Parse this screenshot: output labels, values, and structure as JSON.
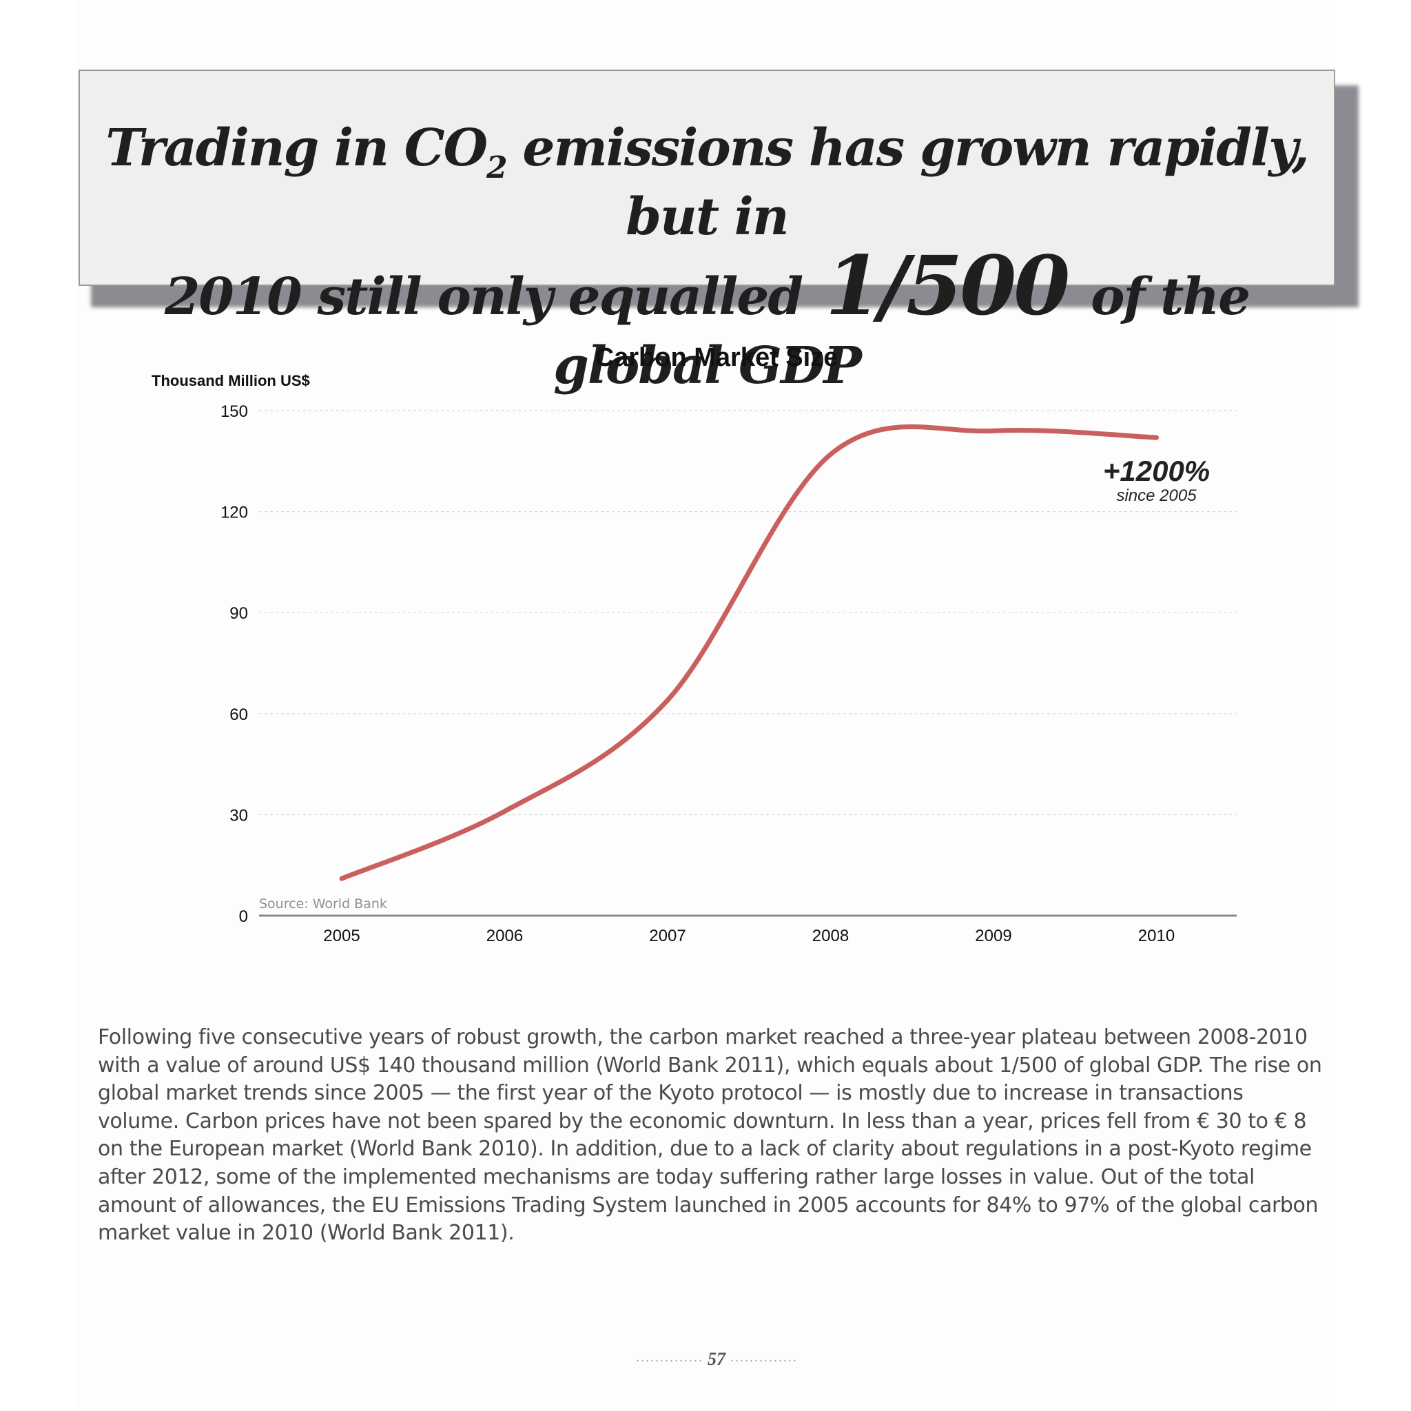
{
  "headline": {
    "line1_a": "Trading in CO",
    "line1_sub": "2",
    "line1_b": " emissions has grown rapidly, but in",
    "line2_a": "2010 still only equalled ",
    "line2_big": "1/500",
    "line2_b": " of the global GDP"
  },
  "chart_data": {
    "type": "line",
    "title": "Carbon Market Size",
    "ylabel": "Thousand Million US$",
    "xlabel": "",
    "x": [
      "2005",
      "2006",
      "2007",
      "2008",
      "2009",
      "2010"
    ],
    "series": [
      {
        "values": [
          11,
          31,
          64,
          137,
          144,
          142
        ]
      }
    ],
    "ylim": [
      0,
      150
    ],
    "yticks": [
      "0",
      "30",
      "60",
      "90",
      "120",
      "150"
    ],
    "grid": true,
    "annotation": {
      "value": "+1200%",
      "sublabel": "since 2005"
    },
    "source": "Source: World Bank",
    "colors": {
      "line": "#c9605e",
      "grid": "#d9d9d9",
      "axis": "#8a8a8a"
    }
  },
  "body": {
    "paragraph": "Following five consecutive years of robust growth, the carbon market reached a three-year plateau between 2008-2010 with a value of around US$ 140 thousand million (World Bank 2011), which equals about 1/500 of global GDP. The rise on global market trends since 2005 — the first year of the Kyoto protocol — is mostly due to increase in transactions volume. Carbon prices have not been spared by the economic downturn. In less than a year, prices fell from € 30 to € 8 on the European market (World Bank 2010). In addition, due to a lack of clarity about regulations in a post-Kyoto regime after 2012, some of the implemented mechanisms are today suffering rather large losses in value. Out of the total amount of allowances, the EU Emissions Trading System launched in 2005 accounts for 84% to 97% of the global carbon market value in 2010 (World Bank 2011)."
  },
  "footer": {
    "page_number": "57"
  }
}
